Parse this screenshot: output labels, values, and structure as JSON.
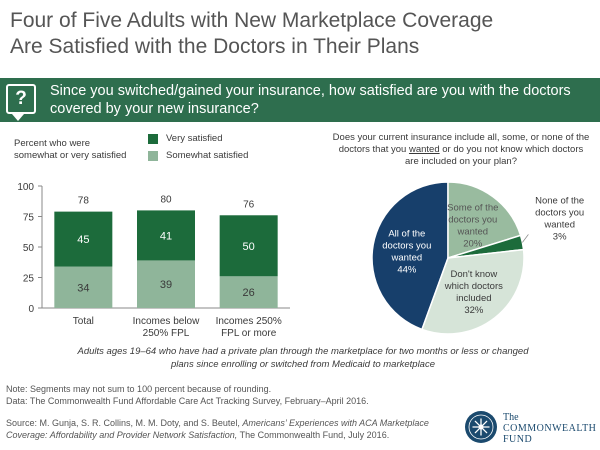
{
  "title": {
    "line1": "Four of Five Adults with New Marketplace Coverage",
    "line2": "Are Satisfied with the Doctors in Their Plans"
  },
  "banner": {
    "icon": "question-speech-bubble-icon",
    "question": "Since you switched/gained your insurance, how satisfied are you with the doctors covered by your new insurance?",
    "color": "#2e6e4e"
  },
  "colors": {
    "very_satisfied": "#1c6b3b",
    "somewhat_satisfied": "#8fb59a",
    "pie_all": "#173f6b",
    "pie_some": "#99bb9f",
    "pie_none": "#1c6b3b",
    "pie_dontknow": "#d6e4d8"
  },
  "chart_data": [
    {
      "type": "bar",
      "subtitle": "Percent who were somewhat or very satisfied",
      "categories": [
        "Total",
        "Incomes below 250% FPL",
        "Incomes 250% FPL or more"
      ],
      "series": [
        {
          "name": "Somewhat satisfied",
          "values": [
            34,
            39,
            26
          ]
        },
        {
          "name": "Very satisfied",
          "values": [
            45,
            41,
            50
          ]
        }
      ],
      "totals": [
        78,
        80,
        76
      ],
      "ylim": [
        0,
        100
      ],
      "yticks": [
        0,
        25,
        50,
        75,
        100
      ],
      "legend": "top-right",
      "stacked": true
    },
    {
      "type": "pie",
      "title": "Does your current insurance include all, some, or none of the doctors that you wanted or do you not know which doctors are included on your plan?",
      "slices": [
        {
          "label": "All of the doctors you wanted",
          "value": 44
        },
        {
          "label": "Some of the doctors you wanted",
          "value": 20
        },
        {
          "label": "None of the doctors you wanted",
          "value": 3
        },
        {
          "label": "Don't know which doctors included",
          "value": 32
        }
      ]
    }
  ],
  "caption": "Adults ages 19–64 who have had a private plan through the marketplace for two months or less or changed plans since enrolling or switched from Medicaid to marketplace",
  "footer": {
    "note": "Note: Segments may not sum to 100 percent because of rounding.",
    "data": "Data: The Commonwealth Fund Affordable Care Act Tracking Survey, February–April 2016.",
    "source_prefix": "Source: M. Gunja, S. R. Collins, M. M. Doty, and S. Beutel, ",
    "source_title": "Americans’ Experiences with ACA Marketplace Coverage: Affordability and Provider Network Satisfaction,",
    "source_suffix": " The Commonwealth Fund, July 2016."
  },
  "logo": {
    "icon": "commonwealth-fund-seal-icon",
    "line1": "The",
    "line2": "COMMONWEALTH",
    "line3": "FUND"
  }
}
